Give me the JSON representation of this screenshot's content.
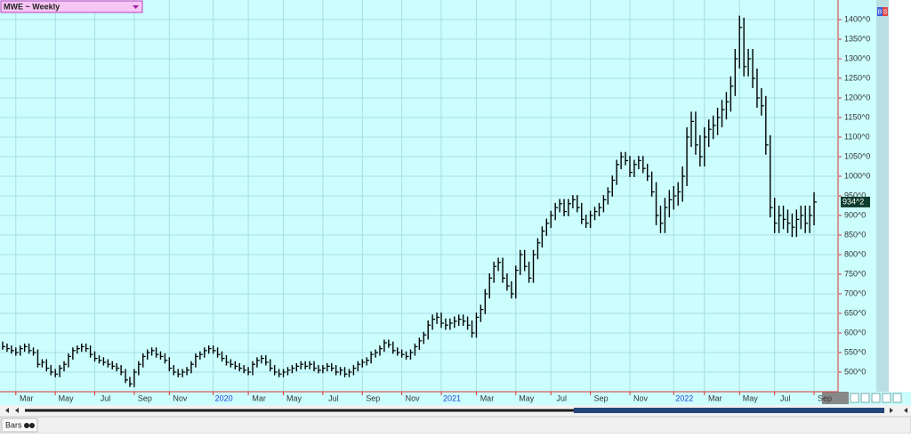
{
  "chart_data": {
    "type": "hlc",
    "title": "MWE ~ Weekly",
    "categories": [
      null,
      null,
      null,
      "Mar",
      null,
      null,
      null,
      null,
      null,
      null,
      null,
      null,
      "May",
      null,
      null,
      null,
      null,
      null,
      null,
      null,
      null,
      "Jul",
      null,
      null,
      null,
      null,
      null,
      null,
      null,
      null,
      "Sep",
      null,
      null,
      null,
      null,
      null,
      null,
      null,
      "Nov",
      null,
      null,
      null,
      null,
      null,
      null,
      null,
      null,
      null,
      "2020",
      null,
      null,
      null,
      null,
      null,
      null,
      null,
      "Mar",
      null,
      null,
      null,
      null,
      null,
      null,
      null,
      "May",
      null,
      null,
      null,
      null,
      null,
      null,
      null,
      null,
      "Jul",
      null,
      null,
      null,
      null,
      null,
      null,
      null,
      null,
      "Sep",
      null,
      null,
      null,
      null,
      null,
      null,
      null,
      null,
      "Nov",
      null,
      null,
      null,
      null,
      null,
      null,
      null,
      null,
      "2021",
      null,
      null,
      null,
      null,
      null,
      null,
      null,
      "Mar",
      null,
      null,
      null,
      null,
      null,
      null,
      null,
      null,
      "May",
      null,
      null,
      null,
      null,
      null,
      null,
      null,
      "Jul",
      null,
      null,
      null,
      null,
      null,
      null,
      null,
      null,
      "Sep",
      null,
      null,
      null,
      null,
      null,
      null,
      null,
      null,
      "Nov",
      null,
      null,
      null,
      null,
      null,
      null,
      null,
      null,
      null,
      "2022",
      null,
      null,
      null,
      null,
      null,
      null,
      "Mar",
      null,
      null,
      null,
      null,
      null,
      null,
      null,
      "May",
      null,
      null,
      null,
      null,
      null,
      null,
      null,
      "Jul",
      null,
      null,
      null,
      null,
      null,
      null,
      null,
      null,
      "Sep"
    ],
    "high": [
      578,
      573,
      568,
      563,
      568,
      573,
      573,
      563,
      558,
      533,
      533,
      518,
      508,
      518,
      528,
      548,
      563,
      568,
      573,
      573,
      568,
      553,
      543,
      538,
      533,
      528,
      523,
      518,
      508,
      488,
      508,
      528,
      548,
      558,
      563,
      563,
      553,
      548,
      538,
      518,
      508,
      508,
      513,
      528,
      548,
      553,
      563,
      568,
      568,
      563,
      553,
      543,
      533,
      528,
      523,
      518,
      513,
      528,
      538,
      543,
      543,
      533,
      518,
      508,
      508,
      513,
      518,
      523,
      528,
      528,
      528,
      528,
      518,
      518,
      523,
      523,
      518,
      513,
      513,
      508,
      518,
      528,
      533,
      538,
      553,
      558,
      568,
      583,
      583,
      578,
      563,
      558,
      553,
      558,
      573,
      588,
      603,
      632,
      647,
      652,
      652,
      637,
      637,
      642,
      647,
      647,
      642,
      632,
      652,
      672,
      712,
      752,
      782,
      792,
      792,
      752,
      732,
      772,
      812,
      812,
      782,
      812,
      842,
      872,
      892,
      912,
      932,
      942,
      942,
      942,
      952,
      952,
      932,
      902,
      912,
      922,
      932,
      952,
      972,
      1002,
      1042,
      1062,
      1062,
      1052,
      1042,
      1052,
      1052,
      1032,
      1012,
      985,
      925,
      945,
      965,
      975,
      985,
      1025,
      1125,
      1165,
      1165,
      1105,
      1125,
      1145,
      1155,
      1175,
      1195,
      1215,
      1255,
      1325,
      1410,
      1405,
      1325,
      1325,
      1275,
      1225,
      1205,
      1105,
      945,
      925,
      925,
      915,
      905,
      915,
      925,
      925,
      925,
      959
    ],
    "low": [
      557,
      552,
      547,
      542,
      542,
      552,
      547,
      542,
      512,
      512,
      502,
      492,
      487,
      487,
      502,
      512,
      532,
      547,
      552,
      552,
      537,
      527,
      522,
      517,
      512,
      507,
      502,
      492,
      472,
      462,
      462,
      492,
      512,
      532,
      542,
      537,
      532,
      522,
      502,
      492,
      487,
      487,
      492,
      497,
      512,
      532,
      537,
      547,
      547,
      537,
      527,
      517,
      512,
      507,
      502,
      497,
      492,
      492,
      512,
      522,
      517,
      502,
      492,
      487,
      487,
      492,
      497,
      502,
      507,
      507,
      507,
      502,
      497,
      497,
      502,
      502,
      492,
      492,
      487,
      487,
      492,
      502,
      512,
      517,
      522,
      537,
      542,
      552,
      562,
      547,
      542,
      537,
      532,
      532,
      542,
      557,
      572,
      583,
      608,
      623,
      613,
      608,
      608,
      613,
      618,
      618,
      608,
      588,
      588,
      628,
      648,
      688,
      728,
      758,
      728,
      708,
      688,
      688,
      748,
      758,
      728,
      728,
      788,
      818,
      848,
      868,
      888,
      908,
      898,
      898,
      918,
      908,
      878,
      868,
      868,
      888,
      898,
      908,
      928,
      948,
      978,
      1018,
      1028,
      998,
      998,
      1018,
      1008,
      988,
      948,
      875,
      855,
      855,
      895,
      915,
      925,
      935,
      975,
      1075,
      1055,
      1025,
      1025,
      1075,
      1095,
      1105,
      1125,
      1145,
      1165,
      1205,
      1275,
      1255,
      1255,
      1225,
      1175,
      1155,
      1055,
      895,
      855,
      855,
      865,
      855,
      845,
      845,
      865,
      855,
      855,
      875
    ],
    "close": [
      565,
      560,
      555,
      550,
      560,
      565,
      555,
      550,
      520,
      525,
      510,
      500,
      495,
      510,
      520,
      540,
      555,
      560,
      565,
      560,
      545,
      535,
      530,
      525,
      520,
      515,
      510,
      500,
      480,
      470,
      500,
      520,
      540,
      550,
      555,
      545,
      540,
      530,
      510,
      500,
      495,
      500,
      505,
      520,
      540,
      545,
      555,
      560,
      555,
      545,
      535,
      525,
      520,
      515,
      510,
      505,
      500,
      520,
      530,
      535,
      525,
      510,
      500,
      495,
      500,
      505,
      510,
      515,
      520,
      515,
      520,
      510,
      505,
      510,
      515,
      510,
      500,
      505,
      495,
      500,
      510,
      520,
      525,
      530,
      545,
      550,
      560,
      575,
      570,
      555,
      550,
      545,
      540,
      550,
      565,
      580,
      595,
      620,
      635,
      640,
      625,
      620,
      625,
      630,
      635,
      630,
      620,
      600,
      640,
      660,
      700,
      740,
      770,
      780,
      740,
      720,
      700,
      760,
      800,
      770,
      740,
      800,
      830,
      860,
      880,
      900,
      920,
      930,
      910,
      930,
      940,
      920,
      890,
      880,
      900,
      910,
      920,
      940,
      960,
      990,
      1030,
      1050,
      1040,
      1010,
      1030,
      1040,
      1020,
      1000,
      960,
      900,
      880,
      920,
      940,
      950,
      960,
      1000,
      1100,
      1140,
      1080,
      1050,
      1100,
      1120,
      1130,
      1150,
      1170,
      1190,
      1230,
      1300,
      1380,
      1280,
      1300,
      1250,
      1200,
      1180,
      1080,
      920,
      880,
      900,
      890,
      880,
      870,
      890,
      900,
      880,
      900,
      934.25
    ],
    "color": "#000000",
    "ylim": [
      450,
      1450
    ],
    "yticks": [
      {
        "value": 500,
        "label": "500^0"
      },
      {
        "value": 550,
        "label": "550^0"
      },
      {
        "value": 600,
        "label": "600^0"
      },
      {
        "value": 650,
        "label": "650^0"
      },
      {
        "value": 700,
        "label": "700^0"
      },
      {
        "value": 750,
        "label": "750^0"
      },
      {
        "value": 800,
        "label": "800^0"
      },
      {
        "value": 850,
        "label": "850^0"
      },
      {
        "value": 900,
        "label": "900^0"
      },
      {
        "value": 950,
        "label": "950^0"
      },
      {
        "value": 1000,
        "label": "1000^0"
      },
      {
        "value": 1050,
        "label": "1050^0"
      },
      {
        "value": 1100,
        "label": "1100^0"
      },
      {
        "value": 1150,
        "label": "1150^0"
      },
      {
        "value": 1200,
        "label": "1200^0"
      },
      {
        "value": 1250,
        "label": "1250^0"
      },
      {
        "value": 1300,
        "label": "1300^0"
      },
      {
        "value": 1350,
        "label": "1350^0"
      },
      {
        "value": 1400,
        "label": "1400^0"
      }
    ],
    "grid": true,
    "background": "#ccfefe",
    "grid_color": "#a9dde6",
    "axis_color": "#e03030",
    "year_label_color": "#1f3fd6",
    "last_price": {
      "value": 934.25,
      "label": "934^2",
      "color": "#0f3d2e"
    }
  },
  "ui": {
    "buttons": [
      "B",
      "S"
    ],
    "toolbar_label": "Bars"
  }
}
